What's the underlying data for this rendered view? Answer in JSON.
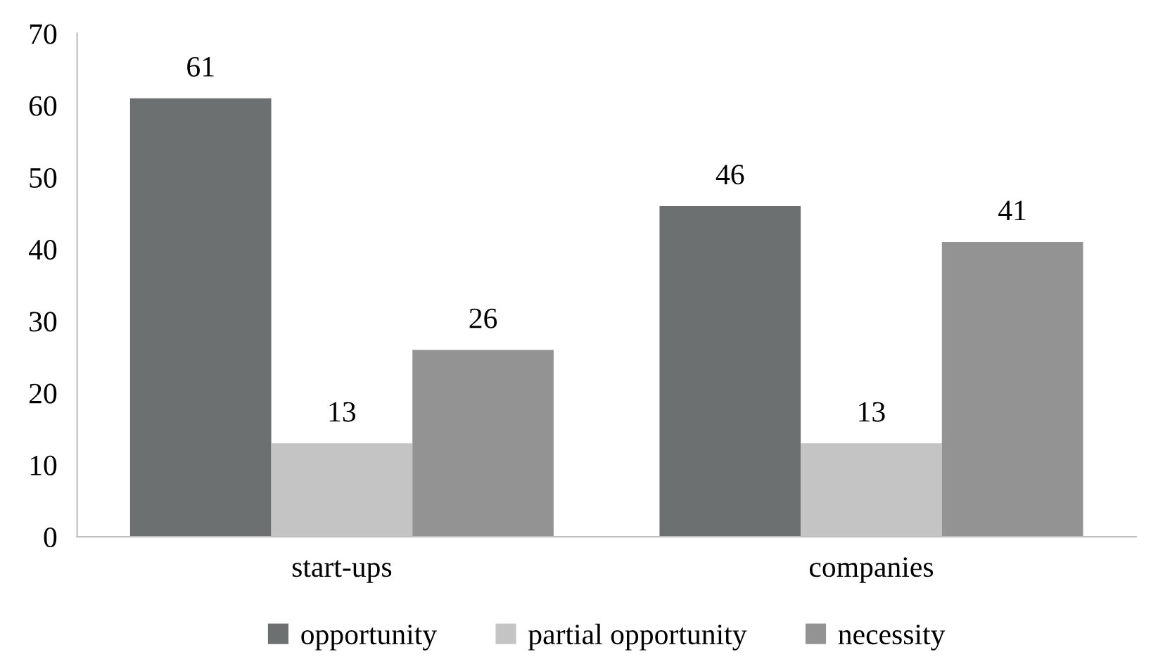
{
  "chart_data": {
    "type": "bar",
    "categories": [
      "start-ups",
      "companies"
    ],
    "series": [
      {
        "name": "opportunity",
        "color": "#6d7070",
        "values": [
          61,
          46
        ]
      },
      {
        "name": "partial opportunity",
        "color": "#c4c4c4",
        "values": [
          13,
          13
        ]
      },
      {
        "name": "necessity",
        "color": "#939393",
        "values": [
          26,
          41
        ]
      }
    ],
    "ylim": [
      0,
      70
    ],
    "yticks": [
      0,
      10,
      20,
      30,
      40,
      50,
      60,
      70
    ],
    "grid": false,
    "legend": "bottom",
    "data_labels": true
  }
}
